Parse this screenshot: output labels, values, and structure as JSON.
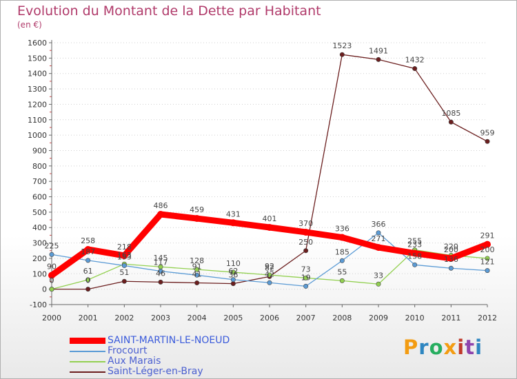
{
  "title": "Evolution du Montant de la Dette par Habitant",
  "unit_label": "(en €)",
  "brand": {
    "text": "Proxiti",
    "colors": [
      "#f39c12",
      "#2e86c1",
      "#27ae60",
      "#f39c12",
      "#c0392b",
      "#8e44ad",
      "#2e86c1"
    ]
  },
  "chart_data": {
    "type": "line",
    "title": "Evolution du Montant de la Dette par Habitant",
    "ylabel": "(en €)",
    "xlabel": "",
    "x": [
      "2000",
      "2001",
      "2002",
      "2003",
      "2004",
      "2005",
      "2006",
      "2007",
      "2008",
      "2009",
      "2010",
      "2011",
      "2012"
    ],
    "yticks": [
      "-100",
      "0",
      "100",
      "200",
      "300",
      "400",
      "500",
      "600",
      "700",
      "800",
      "900",
      "1000",
      "1100",
      "1200",
      "1300",
      "1400",
      "1500",
      "1600"
    ],
    "ylim": [
      -100,
      1600
    ],
    "grid": "horizontal dotted",
    "legend_position": "bottom-left",
    "series": [
      {
        "name": "SAINT-MARTIN-LE-NOEUD",
        "color": "#ff0000",
        "values": [
          90,
          258,
          218,
          486,
          459,
          431,
          401,
          370,
          336,
          271,
          233,
          200,
          291
        ],
        "labels": [
          "90",
          "258",
          "218",
          "486",
          "459",
          "431",
          "401",
          "370",
          "336",
          "271",
          "233",
          "200",
          "291"
        ]
      },
      {
        "name": "Frocourt",
        "color": "#5b9bd5",
        "values": [
          225,
          187,
          153,
          117,
          91,
          62,
          42,
          19,
          185,
          366,
          158,
          136,
          121
        ],
        "labels": [
          "225",
          "187",
          "153",
          "117",
          "91",
          "62",
          "42",
          "19",
          "185",
          "366",
          "158",
          "136",
          "121"
        ]
      },
      {
        "name": "Aux Marais",
        "color": "#92d050",
        "values": [
          0,
          61,
          163,
          145,
          128,
          110,
          92,
          73,
          55,
          33,
          255,
          220,
          200
        ],
        "labels": [
          "0",
          "61",
          "163",
          "145",
          "128",
          "110",
          "92",
          "73",
          "55",
          "33",
          "255",
          "220",
          "200"
        ]
      },
      {
        "name": "Saint-Léger-en-Bray",
        "color": "#6b1e1e",
        "values": [
          0,
          0,
          51,
          46,
          41,
          36,
          82,
          250,
          1523,
          1491,
          1432,
          1085,
          959
        ],
        "labels": [
          "0",
          "0",
          "51",
          "46",
          "41",
          "36",
          "82",
          "250",
          "1523",
          "1491",
          "1432",
          "1085",
          "959"
        ]
      }
    ]
  }
}
